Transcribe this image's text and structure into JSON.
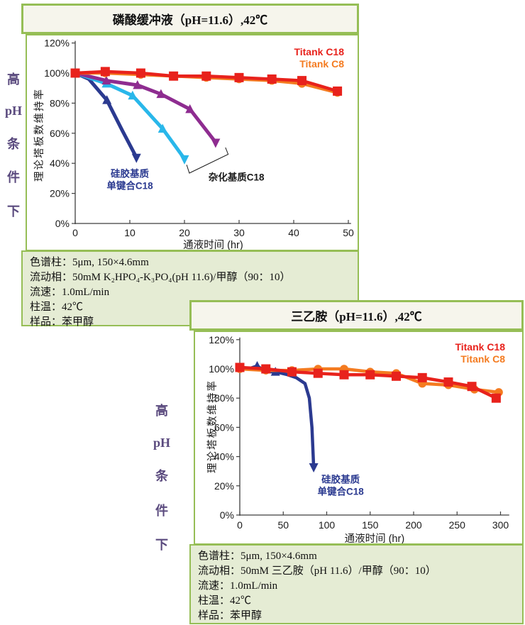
{
  "colors": {
    "panel_border": "#96be56",
    "title_bg": "#f6f5ec",
    "spec_bg": "#e5ecd4",
    "sidebar_text": "#5a4a7e",
    "titank_c18": "#e8221c",
    "titank_c8": "#f47b20",
    "silica_c18": "#2b3a90",
    "hybrid_c18_cyan": "#29b7ea",
    "hybrid_c18_purple": "#8e2c90"
  },
  "sidebars": [
    {
      "chars": [
        "高",
        "pH",
        "条",
        "件",
        "下"
      ]
    },
    {
      "chars": [
        "高",
        "pH",
        "条",
        "件",
        "下"
      ]
    }
  ],
  "panels": [
    {
      "title": "磷酸缓冲液（pH=11.6）,42℃",
      "specs": [
        "色谱柱：5μm, 150×4.6mm",
        "流动相：50mM K₂HPO₄-K₃PO₄(pH 11.6)/甲醇（90：10）",
        "流速：1.0mL/min",
        "柱温：42℃",
        "样品：苯甲醇"
      ]
    },
    {
      "title": "三乙胺（pH=11.6）,42℃",
      "specs": [
        "色谱柱：5μm, 150×4.6mm",
        "流动相：50mM 三乙胺（pH 11.6）/甲醇（90：10）",
        "流速：1.0mL/min",
        "柱温：42℃",
        "样品：苯甲醇"
      ]
    }
  ],
  "chart_data": [
    {
      "type": "line",
      "title": "磷酸缓冲液（pH=11.6）,42℃",
      "xlabel": "通液时间 (hr)",
      "ylabel": "理论塔板数维持率",
      "xlim": [
        0,
        50.5
      ],
      "ylim": [
        0,
        120
      ],
      "grid": false,
      "xticks": [
        {
          "v": 0,
          "label": "0"
        },
        {
          "v": 10,
          "label": "10"
        },
        {
          "v": 20,
          "label": "20"
        },
        {
          "v": 30,
          "label": "30"
        },
        {
          "v": 40,
          "label": "40"
        },
        {
          "v": 50,
          "label": "50"
        }
      ],
      "yticks": [
        {
          "v": 0,
          "label": "0%"
        },
        {
          "v": 20,
          "label": "20%"
        },
        {
          "v": 40,
          "label": "40%"
        },
        {
          "v": 60,
          "label": "60%"
        },
        {
          "v": 80,
          "label": "80%"
        },
        {
          "v": 100,
          "label": "100%"
        },
        {
          "v": 120,
          "label": "120%"
        }
      ],
      "legend": {
        "position": "top-right",
        "items": [
          {
            "label": "Titank C18",
            "color": "#e8221c"
          },
          {
            "label": "Titank C8",
            "color": "#f47b20"
          }
        ]
      },
      "series": [
        {
          "name": "硅胶基质单键合C18",
          "color": "#2b3a90",
          "marker": "triangle",
          "arrow_end": true,
          "line_width": 5,
          "x": [
            0,
            2.5,
            5.8,
            8.6,
            11.2
          ],
          "y": [
            100,
            96,
            82,
            62,
            44
          ],
          "markers_at": [
            2,
            4
          ]
        },
        {
          "name": "杂化基质C18 (a)",
          "color": "#29b7ea",
          "marker": "triangle",
          "arrow_end": true,
          "line_width": 5,
          "x": [
            0,
            5.7,
            10.5,
            16,
            20
          ],
          "y": [
            100,
            93,
            85,
            63,
            43
          ],
          "markers_at": [
            1,
            2,
            3,
            4
          ]
        },
        {
          "name": "杂化基质C18 (b)",
          "color": "#8e2c90",
          "marker": "triangle",
          "arrow_end": true,
          "line_width": 5,
          "x": [
            0,
            5.7,
            11.4,
            15.7,
            21,
            25.7
          ],
          "y": [
            100,
            95,
            92,
            86,
            76,
            54
          ],
          "markers_at": [
            1,
            2,
            3,
            4,
            5
          ]
        },
        {
          "name": "Titank C8",
          "color": "#f47b20",
          "marker": "circle",
          "line_width": 4.5,
          "x": [
            0,
            5.5,
            12,
            18,
            24,
            30,
            36,
            41.5,
            48
          ],
          "y": [
            100,
            100,
            99,
            98,
            97,
            96,
            95,
            93,
            87
          ]
        },
        {
          "name": "Titank C18",
          "color": "#e8221c",
          "marker": "square",
          "line_width": 4.5,
          "x": [
            0,
            5.5,
            12,
            18,
            24,
            30,
            36,
            41.5,
            48
          ],
          "y": [
            100,
            101,
            100,
            98,
            98,
            97,
            96,
            95,
            88
          ]
        }
      ],
      "annotations": [
        {
          "type": "text",
          "lines": [
            "硅胶基质",
            "单键合C18"
          ],
          "color": "#2b3a90",
          "x": 10,
          "y": 31,
          "size": 13.5
        },
        {
          "type": "text",
          "lines": [
            "杂化基质C18"
          ],
          "color": "#1a1a1a",
          "x": 29.5,
          "y": 28.5,
          "size": 13.5
        },
        {
          "type": "bracket",
          "color": "#1a1a1a",
          "points": [
            [
              20.4,
              39
            ],
            [
              20.9,
              33.5
            ],
            [
              28,
              46
            ],
            [
              27.5,
              50.5
            ]
          ]
        }
      ]
    },
    {
      "type": "line",
      "title": "三乙胺（pH=11.6）,42℃",
      "xlabel": "通液时间 (hr)",
      "ylabel": "理论塔板数维持率",
      "xlim": [
        0,
        310
      ],
      "ylim": [
        0,
        120
      ],
      "grid": false,
      "xticks": [
        {
          "v": 0,
          "label": "0"
        },
        {
          "v": 50,
          "label": "50"
        },
        {
          "v": 100,
          "label": "100"
        },
        {
          "v": 150,
          "label": "150"
        },
        {
          "v": 200,
          "label": "200"
        },
        {
          "v": 250,
          "label": "250"
        },
        {
          "v": 300,
          "label": "300"
        }
      ],
      "yticks": [
        {
          "v": 0,
          "label": "0%"
        },
        {
          "v": 20,
          "label": "20%"
        },
        {
          "v": 40,
          "label": "40%"
        },
        {
          "v": 60,
          "label": "60%"
        },
        {
          "v": 80,
          "label": "80%"
        },
        {
          "v": 100,
          "label": "100%"
        },
        {
          "v": 120,
          "label": "120%"
        }
      ],
      "legend": {
        "position": "top-right",
        "items": [
          {
            "label": "Titank C18",
            "color": "#e8221c"
          },
          {
            "label": "Titank C8",
            "color": "#f47b20"
          }
        ]
      },
      "series": [
        {
          "name": "硅胶基质单键合C18",
          "color": "#2b3a90",
          "marker": "triangle",
          "arrow_end": true,
          "line_width": 4.5,
          "x": [
            0,
            10,
            20,
            30,
            41,
            55,
            65,
            75,
            80,
            83,
            85
          ],
          "y": [
            100,
            100,
            102,
            98,
            98,
            96,
            94,
            90,
            80,
            60,
            33
          ],
          "markers_at": [
            2,
            4,
            10
          ]
        },
        {
          "name": "Titank C8",
          "color": "#f47b20",
          "marker": "circle",
          "line_width": 4.5,
          "x": [
            0,
            30,
            60,
            90,
            120,
            150,
            180,
            210,
            240,
            270,
            298
          ],
          "y": [
            100,
            99,
            99,
            100,
            100,
            98,
            97,
            90,
            89,
            86,
            84
          ]
        },
        {
          "name": "Titank C18",
          "color": "#e8221c",
          "marker": "square",
          "line_width": 4.5,
          "x": [
            0,
            30,
            60,
            90,
            120,
            150,
            180,
            210,
            240,
            267,
            295
          ],
          "y": [
            101,
            100,
            98,
            97,
            96,
            96,
            95,
            94,
            91,
            88,
            80
          ]
        }
      ],
      "annotations": [
        {
          "type": "text",
          "lines": [
            "硅胶基质",
            "单键合C18"
          ],
          "color": "#2b3a90",
          "x": 116,
          "y": 22,
          "size": 13.5
        }
      ]
    }
  ]
}
